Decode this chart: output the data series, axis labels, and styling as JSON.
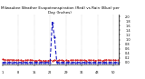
{
  "title": "Milwaukee Weather Evapotranspiration (Red) vs Rain (Blue) per Day (Inches)",
  "title_fontsize": 3.0,
  "background_color": "#ffffff",
  "et_color": "#cc0000",
  "rain_color": "#0000bb",
  "et_values": [
    0.14,
    0.12,
    0.11,
    0.12,
    0.12,
    0.11,
    0.1,
    0.11,
    0.1,
    0.09,
    0.1,
    0.1,
    0.12,
    0.1,
    0.09,
    0.09,
    0.1,
    0.09,
    0.09,
    0.09,
    0.09,
    0.1,
    0.09,
    0.1,
    0.09,
    0.1,
    0.1,
    0.09,
    0.1,
    0.09,
    0.1,
    0.11,
    0.1,
    0.11,
    0.1,
    0.1,
    0.1,
    0.09,
    0.11,
    0.1,
    0.1,
    0.09,
    0.1,
    0.11,
    0.09,
    0.1,
    0.12,
    0.11,
    0.1,
    0.11,
    0.1,
    0.1
  ],
  "rain_values": [
    0.0,
    0.0,
    0.0,
    0.0,
    0.0,
    0.0,
    0.0,
    0.0,
    0.0,
    0.0,
    0.0,
    0.0,
    0.0,
    0.0,
    0.0,
    0.0,
    0.0,
    0.0,
    0.0,
    0.0,
    0.0,
    0.0,
    1.75,
    1.1,
    0.0,
    0.0,
    0.0,
    0.0,
    0.0,
    0.0,
    0.0,
    0.0,
    0.0,
    0.0,
    0.0,
    0.0,
    0.0,
    0.0,
    0.0,
    0.0,
    0.0,
    0.0,
    0.0,
    0.0,
    0.0,
    0.0,
    0.0,
    0.0,
    0.0,
    0.0,
    0.0,
    0.0
  ],
  "ylim": [
    -0.1,
    2.1
  ],
  "ytick_values": [
    0.0,
    0.2,
    0.4,
    0.6,
    0.8,
    1.0,
    1.2,
    1.4,
    1.6,
    1.8,
    2.0
  ],
  "vline_x": [
    7,
    14,
    21,
    28,
    35,
    42,
    49
  ],
  "tick_fontsize": 2.5,
  "lw_et": 0.5,
  "lw_rain": 0.7,
  "marker_size": 1.0
}
